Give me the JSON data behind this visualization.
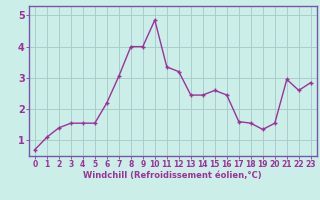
{
  "x": [
    0,
    1,
    2,
    3,
    4,
    5,
    6,
    7,
    8,
    9,
    10,
    11,
    12,
    13,
    14,
    15,
    16,
    17,
    18,
    19,
    20,
    21,
    22,
    23
  ],
  "y": [
    0.7,
    1.1,
    1.4,
    1.55,
    1.55,
    1.55,
    2.2,
    3.05,
    4.0,
    4.0,
    4.85,
    3.35,
    3.2,
    2.45,
    2.45,
    2.6,
    2.45,
    1.6,
    1.55,
    1.35,
    1.55,
    2.95,
    2.6,
    2.85
  ],
  "line_color": "#993399",
  "marker": "+",
  "bg_color": "#cceee8",
  "grid_color": "#aacccc",
  "xlabel": "Windchill (Refroidissement éolien,°C)",
  "ylabel_ticks": [
    1,
    2,
    3,
    4,
    5
  ],
  "xlim": [
    -0.5,
    23.5
  ],
  "ylim": [
    0.5,
    5.3
  ],
  "xlabel_color": "#993399",
  "tick_color": "#993399",
  "spine_color": "#7755aa",
  "markersize": 3.5,
  "linewidth": 1.0,
  "tick_fontsize": 5.5,
  "xlabel_fontsize": 6.0,
  "ylabel_fontsize": 7.0
}
